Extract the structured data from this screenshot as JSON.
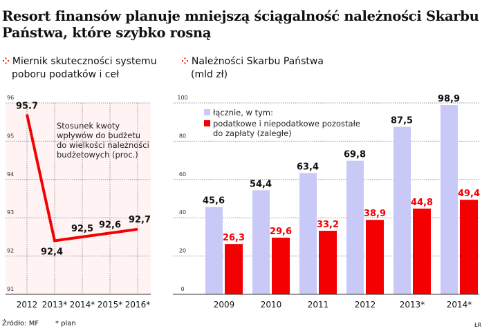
{
  "title": "Resort finansów planuje mniejszą ściągalność należności Skarbu Państwa, które szybko rosną",
  "colors": {
    "red": "#f40000",
    "lavender": "#c9c9f7",
    "grid": "#999999"
  },
  "icon": "red-dots-icon",
  "footer": {
    "source": "Źródło: MF",
    "note": "* plan",
    "author": "ŁR"
  },
  "chart_data": [
    {
      "type": "line",
      "subtitle_line1": "Miernik skuteczności systemu",
      "subtitle_line2": "poboru podatków i ceł",
      "annotation": [
        "Stosunek kwoty",
        "wpływów do budżetu",
        "do wielkości należności",
        "budżetowych (proc.)"
      ],
      "categories": [
        "2012",
        "2013*",
        "2014*",
        "2015*",
        "2016*"
      ],
      "values": [
        95.7,
        92.4,
        92.5,
        92.6,
        92.7
      ],
      "labels": [
        "95.7",
        "92,4",
        "92,5",
        "92,6",
        "92,7"
      ],
      "yticks": [
        "96",
        "95",
        "94",
        "93",
        "92",
        "91"
      ],
      "ylim": [
        91,
        96
      ],
      "grid": true
    },
    {
      "type": "bar",
      "subtitle_line1": "Należności Skarbu Państwa",
      "subtitle_line2": "(mld zł)",
      "categories": [
        "2009",
        "2010",
        "2011",
        "2012",
        "2013*",
        "2014*"
      ],
      "series": [
        {
          "name": "łącznie, w tym:",
          "values": [
            45.6,
            54.4,
            63.4,
            69.8,
            87.5,
            98.9
          ],
          "labels": [
            "45,6",
            "54,4",
            "63,4",
            "69,8",
            "87,5",
            "98,9"
          ]
        },
        {
          "name_line1": "podatkowe i niepodatkowe pozostałe",
          "name_line2": "do zapłaty (zaległe)",
          "values": [
            26.3,
            29.6,
            33.2,
            38.9,
            44.8,
            49.4
          ],
          "labels": [
            "26,3",
            "29,6",
            "33,2",
            "38,9",
            "44,8",
            "49,4"
          ]
        }
      ],
      "yticks": [
        "100",
        "80",
        "60",
        "40",
        "20",
        "0"
      ],
      "ylim": [
        0,
        100
      ],
      "grid": true
    }
  ]
}
